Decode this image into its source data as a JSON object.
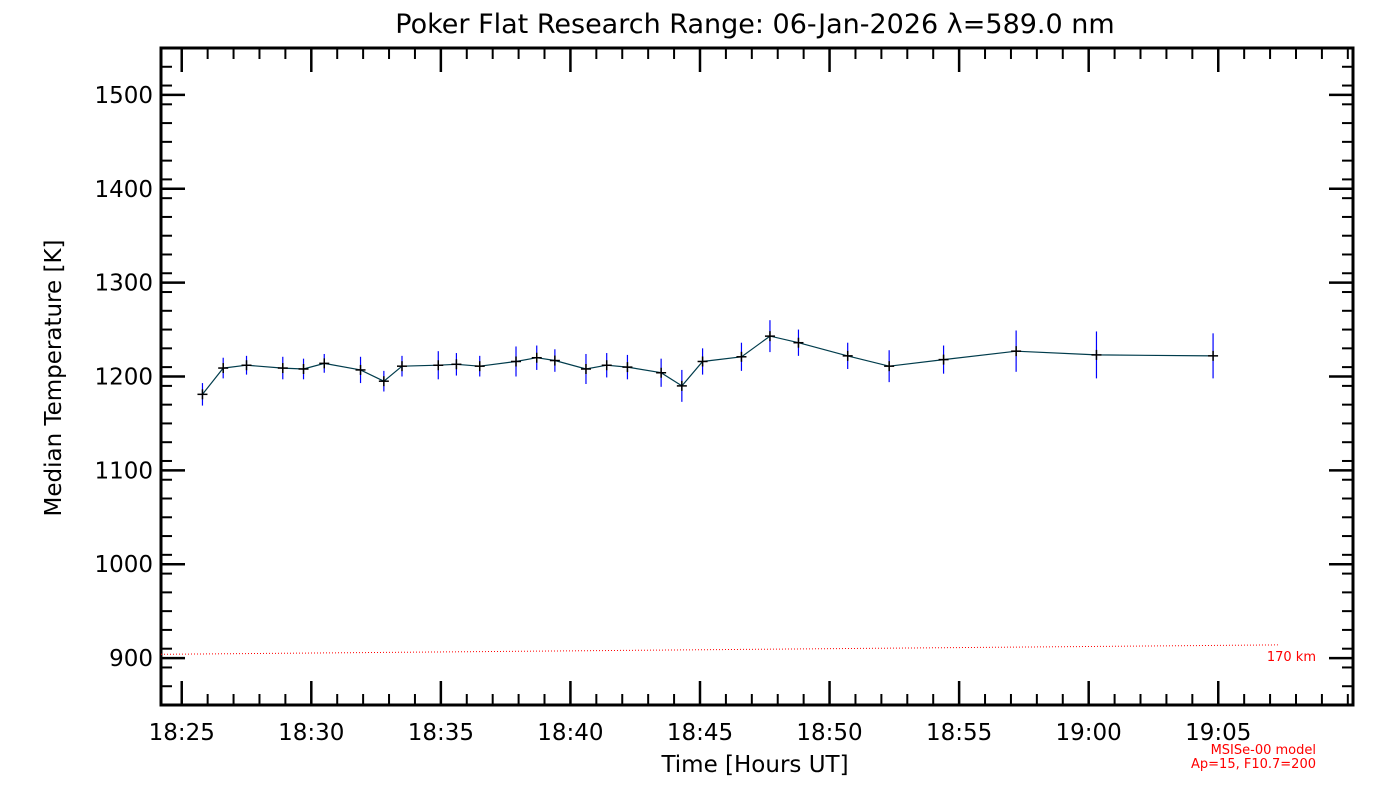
{
  "chart_data": {
    "type": "line",
    "title": "Poker Flat Research Range: 06-Jan-2026 λ=589.0 nm",
    "xlabel": "Time [Hours UT]",
    "ylabel": "Median Temperature [K]",
    "xlim_minutes": [
      1104.2,
      1150.2
    ],
    "ylim": [
      850,
      1550
    ],
    "x_ticks": [
      {
        "minutes": 1105,
        "label": "18:25"
      },
      {
        "minutes": 1110,
        "label": "18:30"
      },
      {
        "minutes": 1115,
        "label": "18:35"
      },
      {
        "minutes": 1120,
        "label": "18:40"
      },
      {
        "minutes": 1125,
        "label": "18:45"
      },
      {
        "minutes": 1130,
        "label": "18:50"
      },
      {
        "minutes": 1135,
        "label": "18:55"
      },
      {
        "minutes": 1140,
        "label": "19:00"
      },
      {
        "minutes": 1145,
        "label": "19:05"
      }
    ],
    "y_ticks": [
      900,
      1000,
      1100,
      1200,
      1300,
      1400,
      1500
    ],
    "x_minor_step": 1,
    "y_minor_step": 20,
    "series": [
      {
        "name": "Median Temperature",
        "color": "#000000",
        "line_color": "#003c4c",
        "error_color": "#0000ff",
        "points": [
          {
            "t": 1105.8,
            "y": 1181,
            "err": 12
          },
          {
            "t": 1106.6,
            "y": 1209,
            "err": 11
          },
          {
            "t": 1107.5,
            "y": 1212,
            "err": 10
          },
          {
            "t": 1108.9,
            "y": 1209,
            "err": 12
          },
          {
            "t": 1109.7,
            "y": 1208,
            "err": 11
          },
          {
            "t": 1110.5,
            "y": 1214,
            "err": 10
          },
          {
            "t": 1111.9,
            "y": 1207,
            "err": 14
          },
          {
            "t": 1112.8,
            "y": 1195,
            "err": 11
          },
          {
            "t": 1113.5,
            "y": 1211,
            "err": 11
          },
          {
            "t": 1114.9,
            "y": 1212,
            "err": 15
          },
          {
            "t": 1115.6,
            "y": 1213,
            "err": 12
          },
          {
            "t": 1116.5,
            "y": 1211,
            "err": 11
          },
          {
            "t": 1117.9,
            "y": 1216,
            "err": 16
          },
          {
            "t": 1118.7,
            "y": 1220,
            "err": 13
          },
          {
            "t": 1119.4,
            "y": 1217,
            "err": 12
          },
          {
            "t": 1120.6,
            "y": 1208,
            "err": 16
          },
          {
            "t": 1121.4,
            "y": 1212,
            "err": 13
          },
          {
            "t": 1122.2,
            "y": 1210,
            "err": 13
          },
          {
            "t": 1123.5,
            "y": 1204,
            "err": 15
          },
          {
            "t": 1124.3,
            "y": 1190,
            "err": 17
          },
          {
            "t": 1125.1,
            "y": 1216,
            "err": 14
          },
          {
            "t": 1126.6,
            "y": 1221,
            "err": 15
          },
          {
            "t": 1127.7,
            "y": 1243,
            "err": 17
          },
          {
            "t": 1128.8,
            "y": 1236,
            "err": 14
          },
          {
            "t": 1130.7,
            "y": 1222,
            "err": 14
          },
          {
            "t": 1132.3,
            "y": 1211,
            "err": 17
          },
          {
            "t": 1134.4,
            "y": 1218,
            "err": 15
          },
          {
            "t": 1137.2,
            "y": 1227,
            "err": 22
          },
          {
            "t": 1140.3,
            "y": 1223,
            "err": 25
          },
          {
            "t": 1144.8,
            "y": 1222,
            "err": 24
          }
        ]
      },
      {
        "name": "MSISe-00 model 170 km",
        "color": "#ff0000",
        "style": "dotted",
        "points": [
          {
            "t": 1104.2,
            "y": 904
          },
          {
            "t": 1147.3,
            "y": 914
          }
        ]
      }
    ],
    "annotations": {
      "model_altitude": "170 km",
      "model_name": "MSISe-00 model",
      "model_params": "Ap=15, F10.7=200"
    }
  }
}
